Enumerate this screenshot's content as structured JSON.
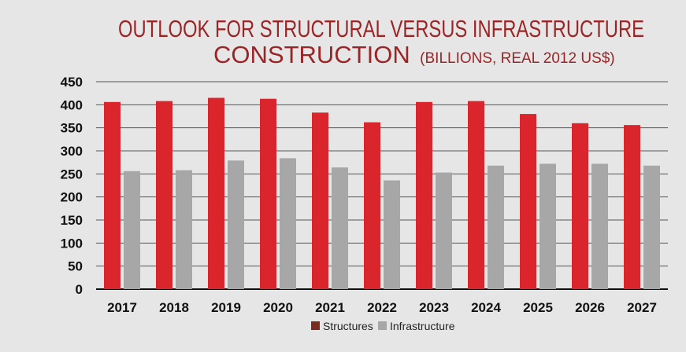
{
  "chart_data": {
    "type": "bar",
    "title": "OUTLOOK FOR STRUCTURAL VERSUS INFRASTRUCTURE",
    "title_line2": "CONSTRUCTION",
    "subtitle": "(BILLIONS, REAL 2012 US$)",
    "categories": [
      "2017",
      "2018",
      "2019",
      "2020",
      "2021",
      "2022",
      "2023",
      "2024",
      "2025",
      "2026",
      "2027"
    ],
    "series": [
      {
        "name": "Structures",
        "color": "#d9252b",
        "legend_color": "#7a2e1f",
        "values": [
          406,
          408,
          415,
          413,
          383,
          362,
          406,
          408,
          380,
          360,
          356
        ]
      },
      {
        "name": "Infrastructure",
        "color": "#a7a7a7",
        "legend_color": "#a7a7a7",
        "values": [
          256,
          258,
          279,
          284,
          264,
          236,
          253,
          268,
          272,
          272,
          268
        ]
      }
    ],
    "yticks": [
      0,
      50,
      100,
      150,
      200,
      250,
      300,
      350,
      400,
      450
    ],
    "ylim": [
      0,
      450
    ],
    "xlabel": "",
    "ylabel": "",
    "grid": true,
    "legend_position": "bottom-center"
  }
}
